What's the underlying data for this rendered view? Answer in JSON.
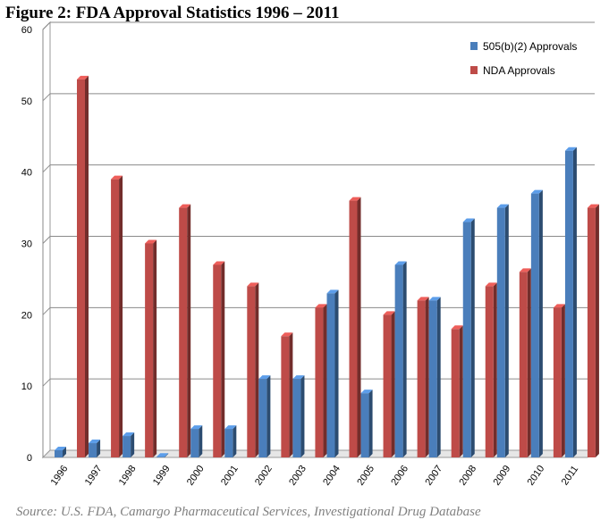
{
  "figure": {
    "title": "Figure 2:  FDA Approval Statistics 1996 – 2011",
    "source": "Source: U.S. FDA, Camargo Pharmaceutical Services, Investigational Drug Database"
  },
  "chart_data": {
    "type": "bar",
    "title": "Figure 2:  FDA Approval Statistics 1996 – 2011",
    "xlabel": "",
    "ylabel": "",
    "ylim": [
      0,
      60
    ],
    "yticks": [
      0,
      10,
      20,
      30,
      40,
      50,
      60
    ],
    "grid": true,
    "legend_position": "top-right",
    "categories": [
      "1996",
      "1997",
      "1998",
      "1999",
      "2000",
      "2001",
      "2002",
      "2003",
      "2004",
      "2005",
      "2006",
      "2007",
      "2008",
      "2009",
      "2010",
      "2011"
    ],
    "series": [
      {
        "name": "505(b)(2) Approvals",
        "color": "#4a7ebb",
        "values": [
          1,
          2,
          3,
          0,
          4,
          4,
          11,
          11,
          23,
          9,
          27,
          22,
          33,
          35,
          37,
          43
        ]
      },
      {
        "name": "NDA Approvals",
        "color": "#be4b48",
        "values": [
          53,
          39,
          30,
          35,
          27,
          24,
          17,
          21,
          36,
          20,
          22,
          18,
          24,
          26,
          21,
          35
        ]
      }
    ]
  }
}
